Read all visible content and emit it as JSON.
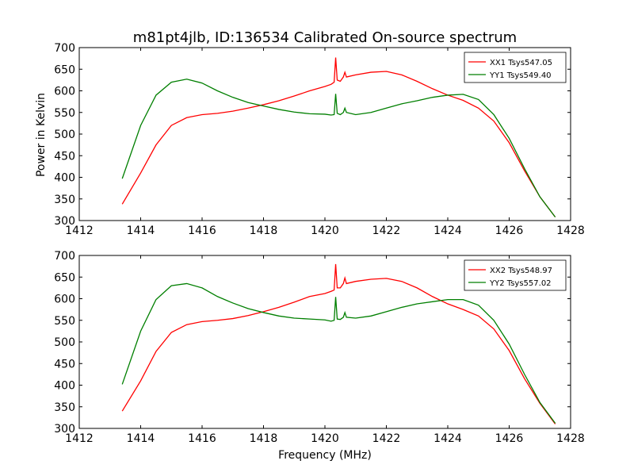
{
  "title": "m81pt4jlb, ID:136534 Calibrated On-source spectrum",
  "ylabel": "Power in Kelvin",
  "xlabel": "Frequency (MHz)",
  "colors": {
    "xx": "#ff0000",
    "yy": "#007f00"
  },
  "chart_data": [
    {
      "type": "line",
      "panel": "top",
      "xlim": [
        1412,
        1428
      ],
      "ylim": [
        300,
        700
      ],
      "xticks": [
        "1412",
        "1414",
        "1416",
        "1418",
        "1420",
        "1422",
        "1424",
        "1426",
        "1428"
      ],
      "yticks": [
        "300",
        "350",
        "400",
        "450",
        "500",
        "550",
        "600",
        "650",
        "700"
      ],
      "legend_position": "top-right",
      "series": [
        {
          "name": "XX1 Tsys547.05",
          "color": "#ff0000",
          "x": [
            1413.4,
            1414,
            1414.5,
            1415,
            1415.5,
            1416,
            1416.5,
            1417,
            1417.5,
            1418,
            1418.5,
            1419,
            1419.5,
            1420,
            1420.2,
            1420.3,
            1420.35,
            1420.4,
            1420.5,
            1420.6,
            1420.65,
            1420.7,
            1421,
            1421.5,
            1422,
            1422.5,
            1423,
            1423.5,
            1424,
            1424.5,
            1425,
            1425.5,
            1426,
            1426.5,
            1427,
            1427.5
          ],
          "y": [
            338,
            410,
            475,
            520,
            538,
            545,
            548,
            553,
            560,
            568,
            577,
            588,
            600,
            610,
            615,
            620,
            677,
            625,
            622,
            632,
            643,
            632,
            637,
            643,
            645,
            637,
            622,
            605,
            590,
            578,
            560,
            530,
            480,
            415,
            355,
            308
          ]
        },
        {
          "name": "YY1 Tsys549.40",
          "color": "#007f00",
          "x": [
            1413.4,
            1414,
            1414.5,
            1415,
            1415.5,
            1416,
            1416.5,
            1417,
            1417.5,
            1418,
            1418.5,
            1419,
            1419.5,
            1420,
            1420.2,
            1420.3,
            1420.35,
            1420.4,
            1420.5,
            1420.6,
            1420.65,
            1420.7,
            1421,
            1421.5,
            1422,
            1422.5,
            1423,
            1423.5,
            1424,
            1424.5,
            1425,
            1425.5,
            1426,
            1426.5,
            1427,
            1427.5
          ],
          "y": [
            397,
            520,
            590,
            620,
            627,
            618,
            600,
            585,
            573,
            565,
            557,
            551,
            547,
            546,
            544,
            545,
            593,
            548,
            545,
            550,
            560,
            550,
            545,
            550,
            560,
            570,
            577,
            585,
            590,
            592,
            580,
            545,
            490,
            420,
            355,
            308
          ]
        }
      ]
    },
    {
      "type": "line",
      "panel": "bottom",
      "xlim": [
        1412,
        1428
      ],
      "ylim": [
        300,
        700
      ],
      "xticks": [
        "1412",
        "1414",
        "1416",
        "1418",
        "1420",
        "1422",
        "1424",
        "1426",
        "1428"
      ],
      "yticks": [
        "300",
        "350",
        "400",
        "450",
        "500",
        "550",
        "600",
        "650",
        "700"
      ],
      "legend_position": "top-right",
      "series": [
        {
          "name": "XX2 Tsys548.97",
          "color": "#ff0000",
          "x": [
            1413.4,
            1414,
            1414.5,
            1415,
            1415.5,
            1416,
            1416.5,
            1417,
            1417.5,
            1418,
            1418.5,
            1419,
            1419.5,
            1420,
            1420.2,
            1420.3,
            1420.35,
            1420.4,
            1420.5,
            1420.6,
            1420.65,
            1420.7,
            1421,
            1421.5,
            1422,
            1422.5,
            1423,
            1423.5,
            1424,
            1424.5,
            1425,
            1425.5,
            1426,
            1426.5,
            1427,
            1427.5
          ],
          "y": [
            340,
            410,
            478,
            522,
            540,
            547,
            550,
            554,
            561,
            570,
            580,
            592,
            605,
            612,
            617,
            620,
            680,
            625,
            625,
            635,
            648,
            635,
            640,
            645,
            647,
            640,
            625,
            605,
            588,
            575,
            560,
            530,
            480,
            415,
            358,
            310
          ]
        },
        {
          "name": "YY2 Tsys557.02",
          "color": "#007f00",
          "x": [
            1413.4,
            1414,
            1414.5,
            1415,
            1415.5,
            1416,
            1416.5,
            1417,
            1417.5,
            1418,
            1418.5,
            1419,
            1419.5,
            1420,
            1420.2,
            1420.3,
            1420.35,
            1420.4,
            1420.5,
            1420.6,
            1420.65,
            1420.7,
            1421,
            1421.5,
            1422,
            1422.5,
            1423,
            1423.5,
            1424,
            1424.5,
            1425,
            1425.5,
            1426,
            1426.5,
            1427,
            1427.5
          ],
          "y": [
            402,
            525,
            598,
            630,
            635,
            625,
            605,
            590,
            577,
            568,
            560,
            555,
            553,
            551,
            548,
            550,
            604,
            553,
            552,
            557,
            568,
            557,
            555,
            560,
            570,
            580,
            588,
            593,
            598,
            598,
            585,
            550,
            495,
            425,
            360,
            312
          ]
        }
      ]
    }
  ]
}
